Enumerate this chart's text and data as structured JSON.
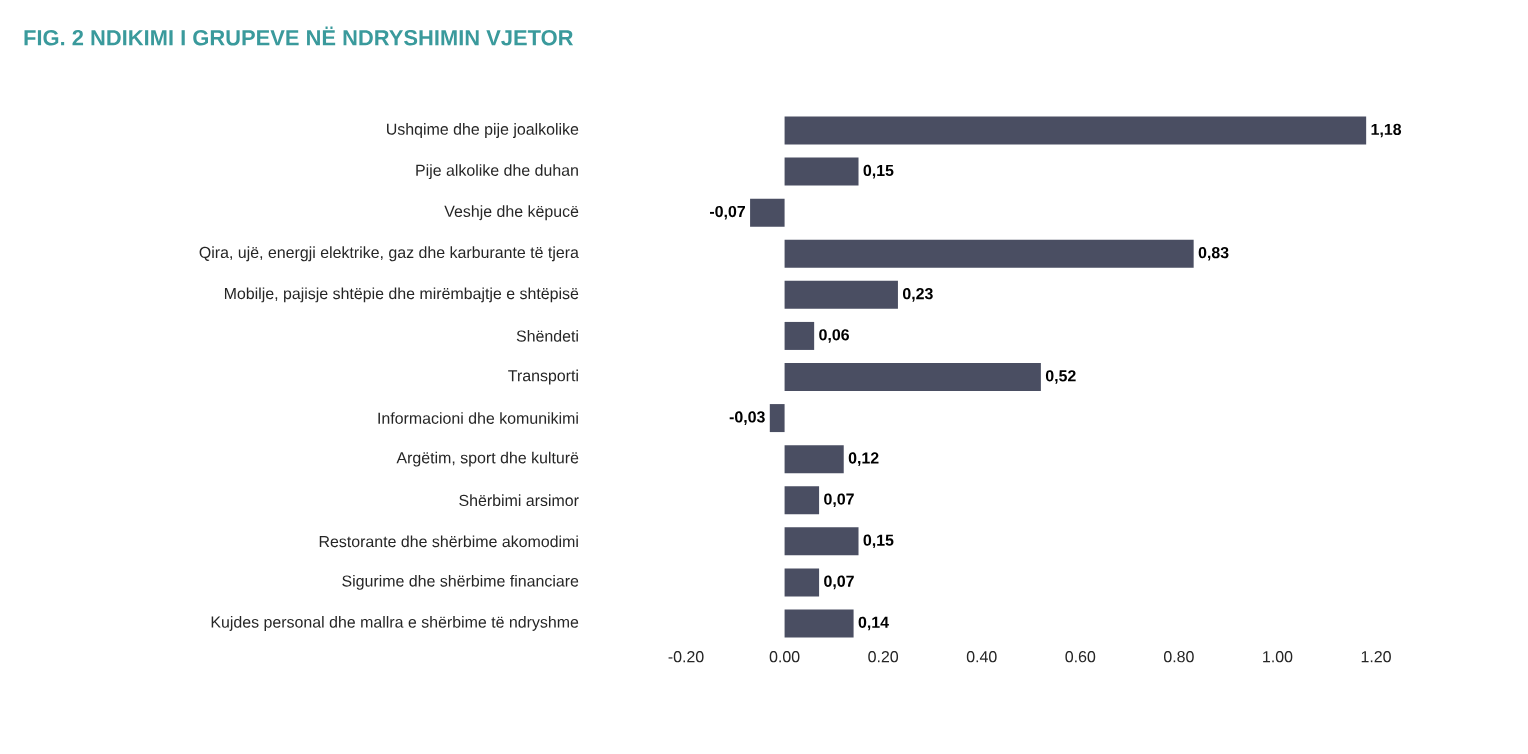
{
  "chart_data": {
    "type": "bar",
    "orientation": "horizontal",
    "title": "FIG. 2 NDIKIMI I GRUPEVE NË NDRYSHIMIN VJETOR",
    "categories": [
      "Ushqime dhe pije joalkolike",
      "Pije alkolike dhe duhan",
      "Veshje dhe këpucë",
      "Qira, ujë, energji elektrike, gaz dhe karburante të tjera",
      "Mobilje, pajisje shtëpie dhe mirëmbajtje e shtëpisë",
      "Shëndeti",
      "Transporti",
      "Informacioni dhe komunikimi",
      "Argëtim, sport dhe kulturë",
      "Shërbimi arsimor",
      "Restorante dhe shërbime akomodimi",
      "Sigurime dhe shërbime financiare",
      "Kujdes personal dhe mallra e shërbime të ndryshme"
    ],
    "values": [
      1.18,
      0.15,
      -0.07,
      0.83,
      0.23,
      0.06,
      0.52,
      -0.03,
      0.12,
      0.07,
      0.15,
      0.07,
      0.14
    ],
    "value_labels": [
      "1,18",
      "0,15",
      "-0,07",
      "0,83",
      "0,23",
      "0,06",
      "0,52",
      "-0,03",
      "0,12",
      "0,07",
      "0,15",
      "0,07",
      "0,14"
    ],
    "color": "#4a4e62",
    "xlim": [
      -0.2,
      1.2
    ],
    "xticks": [
      {
        "value": -0.2,
        "label": "-0.20"
      },
      {
        "value": 0,
        "label": "0.00"
      },
      {
        "value": 0.2,
        "label": "0.20"
      },
      {
        "value": 0.4,
        "label": "0.40"
      },
      {
        "value": 0.6,
        "label": "0.60"
      },
      {
        "value": 0.8,
        "label": "0.80"
      },
      {
        "value": 1.0,
        "label": "1.00"
      },
      {
        "value": 1.2,
        "label": "1.20"
      }
    ],
    "grid": false
  }
}
